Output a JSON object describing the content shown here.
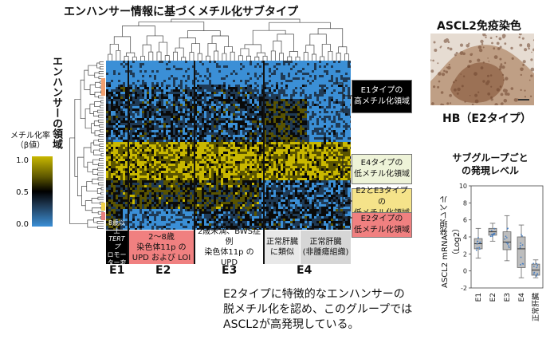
{
  "title": "エンハンサー情報に基づくメチル化サブタイプ",
  "row_axis_label": "エンハンサーの領域",
  "colorbar": {
    "title": "メチル化率\n（β値）",
    "ticks": [
      "1.0",
      "0.5",
      "0.0"
    ],
    "colors": [
      "#c9b800",
      "#000000",
      "#3b8fd6"
    ]
  },
  "groups": [
    {
      "id": "E1",
      "bottom_text": [
        "8歳以上",
        "TERTプ",
        "ロモー",
        "ター変異"
      ],
      "bg": "#000000",
      "color": "#ffffff"
    },
    {
      "id": "E2",
      "bottom_text": [
        "2～8歳",
        "染色体11p の",
        "UPD および LOI"
      ],
      "bg": "#f08080",
      "color": "#111111"
    },
    {
      "id": "E3",
      "bottom_text": [
        "2歳未満、BWS症例",
        "染色体11p の UPD"
      ],
      "bg": "#ffffff",
      "color": "#111111"
    },
    {
      "id": "E4a",
      "bottom_text": [
        "正常肝臓",
        "に類似"
      ],
      "bg": "#e8e8e8",
      "color": "#111111"
    },
    {
      "id": "E4b",
      "bottom_text": [
        "正常肝臓",
        "(非腫瘍組織)"
      ],
      "bg": "#d6d6d6",
      "color": "#111111"
    }
  ],
  "group_labels": [
    "E1",
    "E2",
    "E3",
    "E4"
  ],
  "right_boxes": [
    {
      "lines": [
        "E1タイプの",
        "高メチル化領域"
      ],
      "bg": "#000000",
      "color": "#ffffff"
    },
    {
      "lines": [
        "E4タイプの",
        "低メチル化領域"
      ],
      "bg": "#eef3d8",
      "color": "#111111"
    },
    {
      "lines": [
        "E2とE3タイプの",
        "低メチル化領域"
      ],
      "bg": "#f5e38a",
      "color": "#111111"
    },
    {
      "lines": [
        "E2タイプの",
        "低メチル化領域"
      ],
      "bg": "#f08080",
      "color": "#111111"
    }
  ],
  "summary_lines": [
    "E2タイプに特徴的なエンハンサーの",
    "脱メチル化を認め、このグループでは",
    "ASCL2が高発現している。"
  ],
  "ihc": {
    "title": "ASCL2免疫染色",
    "caption": "HB（E2タイプ）"
  },
  "chart_data": {
    "type": "box",
    "title": "サブグループごと\nの発現レベル",
    "ylabel": "ASCL2 mRNA発現レベル（Log2）",
    "categories": [
      "E1",
      "E2",
      "E3",
      "E4",
      "正常肝臓"
    ],
    "ylim": [
      -2,
      10
    ],
    "yticks": [
      "10",
      "8",
      "6",
      "4",
      "2",
      "0",
      "-2"
    ],
    "boxes": [
      {
        "whisker_low": 1.5,
        "q1": 2.6,
        "median": 3.2,
        "q3": 3.8,
        "whisker_high": 5.0
      },
      {
        "whisker_low": 3.5,
        "q1": 4.2,
        "median": 4.6,
        "q3": 5.0,
        "whisker_high": 5.6
      },
      {
        "whisker_low": 1.2,
        "q1": 2.5,
        "median": 3.4,
        "q3": 4.6,
        "whisker_high": 6.5
      },
      {
        "whisker_low": -0.8,
        "q1": 0.4,
        "median": 2.6,
        "q3": 4.0,
        "whisker_high": 5.4
      },
      {
        "whisker_low": -0.8,
        "q1": -0.5,
        "median": 0.1,
        "q3": 0.8,
        "whisker_high": 1.3
      }
    ]
  }
}
